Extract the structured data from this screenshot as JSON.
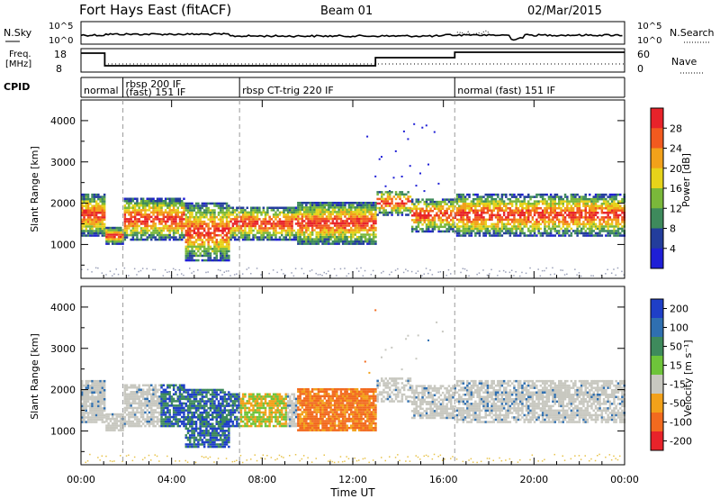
{
  "header": {
    "title": "Fort Hays East (fitACF)",
    "beam": "Beam 01",
    "date": "02/Mar/2015"
  },
  "top_panel": {
    "nsky_label": "N.Sky",
    "nsearch_label": "N.Search",
    "left_ticks": [
      "10^5",
      "10^0"
    ],
    "right_ticks": [
      "10^5",
      "10^0"
    ],
    "freq_label_1": "Freq.",
    "freq_label_2": "[MHz]",
    "freq_ticks": [
      "18",
      "8"
    ],
    "nave_label": "Nave",
    "nave_ticks": [
      "60",
      "0"
    ],
    "cpid_label": "CPID",
    "cpid_segments": [
      {
        "lines": [
          "normal"
        ],
        "start": 0.0,
        "end": 1.85
      },
      {
        "lines": [
          "rbsp 200 IF",
          "(fast) 151 IF"
        ],
        "start": 1.85,
        "end": 7.0
      },
      {
        "lines": [
          "rbsp CT-trig 220 IF"
        ],
        "start": 7.0,
        "end": 16.5
      },
      {
        "lines": [
          "normal (fast) 151 IF"
        ],
        "start": 16.5,
        "end": 24.0
      }
    ]
  },
  "chart_data": [
    {
      "type": "heatmap",
      "name": "power",
      "ylabel": "Slant Range [km]",
      "yticks": [
        "1000",
        "2000",
        "3000",
        "4000"
      ],
      "ylim": [
        180,
        4500
      ],
      "colorbar_label": "Power [dB]",
      "colorbar_ticks": [
        "28",
        "24",
        "20",
        "16",
        "12",
        "8",
        "4"
      ],
      "colorbar_colors": [
        "#e8232a",
        "#f25a1f",
        "#f2a11a",
        "#e6d31a",
        "#7ab83a",
        "#3e8a5c",
        "#233d9c",
        "#1f1fd6"
      ]
    },
    {
      "type": "heatmap",
      "name": "velocity",
      "ylabel": "Slant Range [km]",
      "yticks": [
        "1000",
        "2000",
        "3000",
        "4000"
      ],
      "ylim": [
        180,
        4500
      ],
      "colorbar_label": "Velocity [m s⁻¹]",
      "colorbar_ticks": [
        "200",
        "100",
        "50",
        "15",
        "-15",
        "-50",
        "-100",
        "-200"
      ],
      "colorbar_colors": [
        "#1f3fc7",
        "#2f6fb0",
        "#3e8a5c",
        "#6ec43a",
        "#c8c8c0",
        "#f2a11a",
        "#f26a1f",
        "#e8232a"
      ]
    }
  ],
  "xaxis": {
    "label": "Time UT",
    "ticks": [
      "00:00",
      "04:00",
      "08:00",
      "12:00",
      "16:00",
      "20:00",
      "00:00"
    ]
  }
}
